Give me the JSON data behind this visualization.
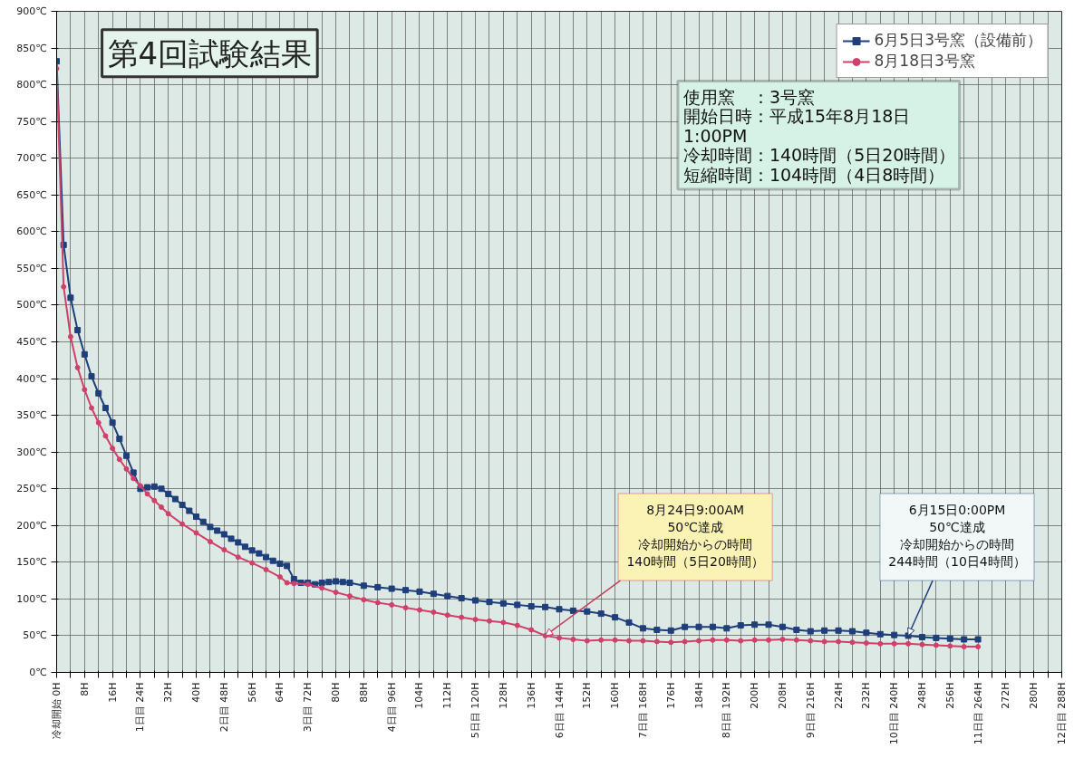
{
  "chart_data": {
    "type": "line",
    "title": "第4回試験結果",
    "xlim": [
      0,
      288
    ],
    "ylim": [
      0,
      900
    ],
    "xticks": [
      {
        "value": 0,
        "label": "冷却開始 0H"
      },
      {
        "value": 4,
        "label": null
      },
      {
        "value": 8,
        "label": "8H"
      },
      {
        "value": 12,
        "label": null
      },
      {
        "value": 16,
        "label": "16H"
      },
      {
        "value": 20,
        "label": null
      },
      {
        "value": 24,
        "label": "1日目 24H"
      },
      {
        "value": 28,
        "label": null
      },
      {
        "value": 32,
        "label": "32H"
      },
      {
        "value": 36,
        "label": null
      },
      {
        "value": 40,
        "label": "40H"
      },
      {
        "value": 44,
        "label": null
      },
      {
        "value": 48,
        "label": "2日目 48H"
      },
      {
        "value": 52,
        "label": null
      },
      {
        "value": 56,
        "label": "56H"
      },
      {
        "value": 60,
        "label": null
      },
      {
        "value": 64,
        "label": "64H"
      },
      {
        "value": 68,
        "label": null
      },
      {
        "value": 72,
        "label": "3日目 72H"
      },
      {
        "value": 76,
        "label": null
      },
      {
        "value": 80,
        "label": "80H"
      },
      {
        "value": 84,
        "label": null
      },
      {
        "value": 88,
        "label": "88H"
      },
      {
        "value": 92,
        "label": null
      },
      {
        "value": 96,
        "label": "4日目 96H"
      },
      {
        "value": 100,
        "label": null
      },
      {
        "value": 104,
        "label": "104H"
      },
      {
        "value": 108,
        "label": null
      },
      {
        "value": 112,
        "label": "112H"
      },
      {
        "value": 116,
        "label": null
      },
      {
        "value": 120,
        "label": "5日目 120H"
      },
      {
        "value": 124,
        "label": null
      },
      {
        "value": 128,
        "label": "128H"
      },
      {
        "value": 132,
        "label": null
      },
      {
        "value": 136,
        "label": "136H"
      },
      {
        "value": 140,
        "label": null
      },
      {
        "value": 144,
        "label": "6日目 144H"
      },
      {
        "value": 148,
        "label": null
      },
      {
        "value": 152,
        "label": "152H"
      },
      {
        "value": 156,
        "label": null
      },
      {
        "value": 160,
        "label": "160H"
      },
      {
        "value": 164,
        "label": null
      },
      {
        "value": 168,
        "label": "7日目 168H"
      },
      {
        "value": 172,
        "label": null
      },
      {
        "value": 176,
        "label": "176H"
      },
      {
        "value": 180,
        "label": null
      },
      {
        "value": 184,
        "label": "184H"
      },
      {
        "value": 188,
        "label": null
      },
      {
        "value": 192,
        "label": "8日目 192H"
      },
      {
        "value": 196,
        "label": null
      },
      {
        "value": 200,
        "label": "200H"
      },
      {
        "value": 204,
        "label": null
      },
      {
        "value": 208,
        "label": "208H"
      },
      {
        "value": 212,
        "label": null
      },
      {
        "value": 216,
        "label": "9日目 216H"
      },
      {
        "value": 220,
        "label": null
      },
      {
        "value": 224,
        "label": "224H"
      },
      {
        "value": 228,
        "label": null
      },
      {
        "value": 232,
        "label": "232H"
      },
      {
        "value": 236,
        "label": null
      },
      {
        "value": 240,
        "label": "10日目 240H"
      },
      {
        "value": 244,
        "label": null
      },
      {
        "value": 248,
        "label": "248H"
      },
      {
        "value": 252,
        "label": null
      },
      {
        "value": 256,
        "label": "256H"
      },
      {
        "value": 260,
        "label": null
      },
      {
        "value": 264,
        "label": "11日目 264H"
      },
      {
        "value": 268,
        "label": null
      },
      {
        "value": 272,
        "label": "272H"
      },
      {
        "value": 276,
        "label": null
      },
      {
        "value": 280,
        "label": "280H"
      },
      {
        "value": 284,
        "label": null
      },
      {
        "value": 288,
        "label": "12日目 288H"
      }
    ],
    "yticks": [
      {
        "value": 0,
        "label": "0℃"
      },
      {
        "value": 50,
        "label": "50℃"
      },
      {
        "value": 100,
        "label": "100℃"
      },
      {
        "value": 150,
        "label": "150℃"
      },
      {
        "value": 200,
        "label": "200℃"
      },
      {
        "value": 250,
        "label": "250℃"
      },
      {
        "value": 300,
        "label": "300℃"
      },
      {
        "value": 350,
        "label": "350℃"
      },
      {
        "value": 400,
        "label": "400℃"
      },
      {
        "value": 450,
        "label": "450℃"
      },
      {
        "value": 500,
        "label": "500℃"
      },
      {
        "value": 550,
        "label": "550℃"
      },
      {
        "value": 600,
        "label": "600℃"
      },
      {
        "value": 650,
        "label": "650℃"
      },
      {
        "value": 700,
        "label": "700℃"
      },
      {
        "value": 750,
        "label": "750℃"
      },
      {
        "value": 800,
        "label": "800℃"
      },
      {
        "value": 850,
        "label": "850℃"
      },
      {
        "value": 900,
        "label": "900℃"
      }
    ],
    "grid": true,
    "legend": "top right",
    "line_style": "solid",
    "series": [
      {
        "name": "6月5日3号窯（設備前）",
        "color": "#1f3f7a",
        "marker": "square",
        "x": [
          0,
          2,
          4,
          6,
          8,
          10,
          12,
          14,
          16,
          18,
          20,
          22,
          24,
          26,
          28,
          30,
          32,
          34,
          36,
          38,
          40,
          42,
          44,
          46,
          48,
          50,
          52,
          54,
          56,
          58,
          60,
          62,
          64,
          66,
          68,
          70,
          72,
          74,
          76,
          78,
          80,
          82,
          84,
          88,
          92,
          96,
          100,
          104,
          108,
          112,
          116,
          120,
          124,
          128,
          132,
          136,
          140,
          144,
          148,
          152,
          156,
          160,
          164,
          168,
          172,
          176,
          180,
          184,
          188,
          192,
          196,
          200,
          204,
          208,
          212,
          216,
          220,
          224,
          228,
          232,
          236,
          240,
          244,
          248,
          252,
          256,
          260,
          264
        ],
        "values": [
          832,
          582,
          510,
          466,
          433,
          403,
          380,
          360,
          340,
          318,
          295,
          272,
          250,
          252,
          253,
          250,
          243,
          236,
          228,
          220,
          212,
          205,
          198,
          193,
          188,
          182,
          177,
          171,
          166,
          162,
          157,
          152,
          148,
          145,
          127,
          122,
          122,
          120,
          122,
          123,
          124,
          123,
          122,
          118,
          116,
          114,
          112,
          110,
          107,
          104,
          101,
          98,
          96,
          94,
          92,
          90,
          89,
          86,
          84,
          83,
          80,
          75,
          68,
          60,
          58,
          57,
          62,
          62,
          62,
          60,
          64,
          65,
          65,
          62,
          58,
          56,
          57,
          57,
          56,
          54,
          52,
          51,
          50,
          48,
          47,
          46,
          45,
          45
        ]
      },
      {
        "name": "8月18日3号窯",
        "color": "#d0406a",
        "marker": "circle",
        "x": [
          0,
          2,
          4,
          6,
          8,
          10,
          12,
          14,
          16,
          18,
          20,
          22,
          24,
          26,
          28,
          30,
          32,
          36,
          40,
          44,
          48,
          52,
          56,
          60,
          64,
          66,
          68,
          72,
          76,
          80,
          84,
          88,
          92,
          96,
          100,
          104,
          108,
          112,
          116,
          120,
          124,
          128,
          132,
          136,
          140,
          144,
          148,
          152,
          156,
          160,
          164,
          168,
          172,
          176,
          180,
          184,
          188,
          192,
          196,
          200,
          204,
          208,
          212,
          216,
          220,
          224,
          228,
          232,
          236,
          240,
          244,
          248,
          252,
          256,
          260,
          264
        ],
        "values": [
          822,
          525,
          457,
          415,
          385,
          360,
          340,
          322,
          305,
          290,
          277,
          264,
          254,
          243,
          234,
          225,
          216,
          202,
          190,
          178,
          167,
          157,
          149,
          140,
          130,
          122,
          121,
          120,
          115,
          109,
          104,
          99,
          95,
          92,
          88,
          85,
          82,
          78,
          75,
          72,
          70,
          68,
          64,
          58,
          50,
          47,
          45,
          43,
          44,
          44,
          43,
          43,
          42,
          41,
          42,
          43,
          44,
          44,
          43,
          44,
          44,
          45,
          44,
          43,
          42,
          42,
          41,
          40,
          39,
          39,
          39,
          38,
          37,
          36,
          35,
          35
        ]
      }
    ],
    "annotations": [
      "8月24日9:00AM",
      "50℃達成",
      "冷却開始からの時間",
      {
        "text": "140時間（5日20時間）",
        "x": 140,
        "y": 50
      },
      "6月15日0:00PM",
      "50℃達成",
      "冷却開始からの時間",
      {
        "text": "244時間（10日4時間）",
        "x": 244,
        "y": 50
      },
      "使用窯　：3号窯",
      "開始日時：平成15年8月18日",
      "1:00PM",
      "冷却時間：140時間（5日20時間）",
      "短縮時間：104時間（4日8時間）"
    ]
  }
}
